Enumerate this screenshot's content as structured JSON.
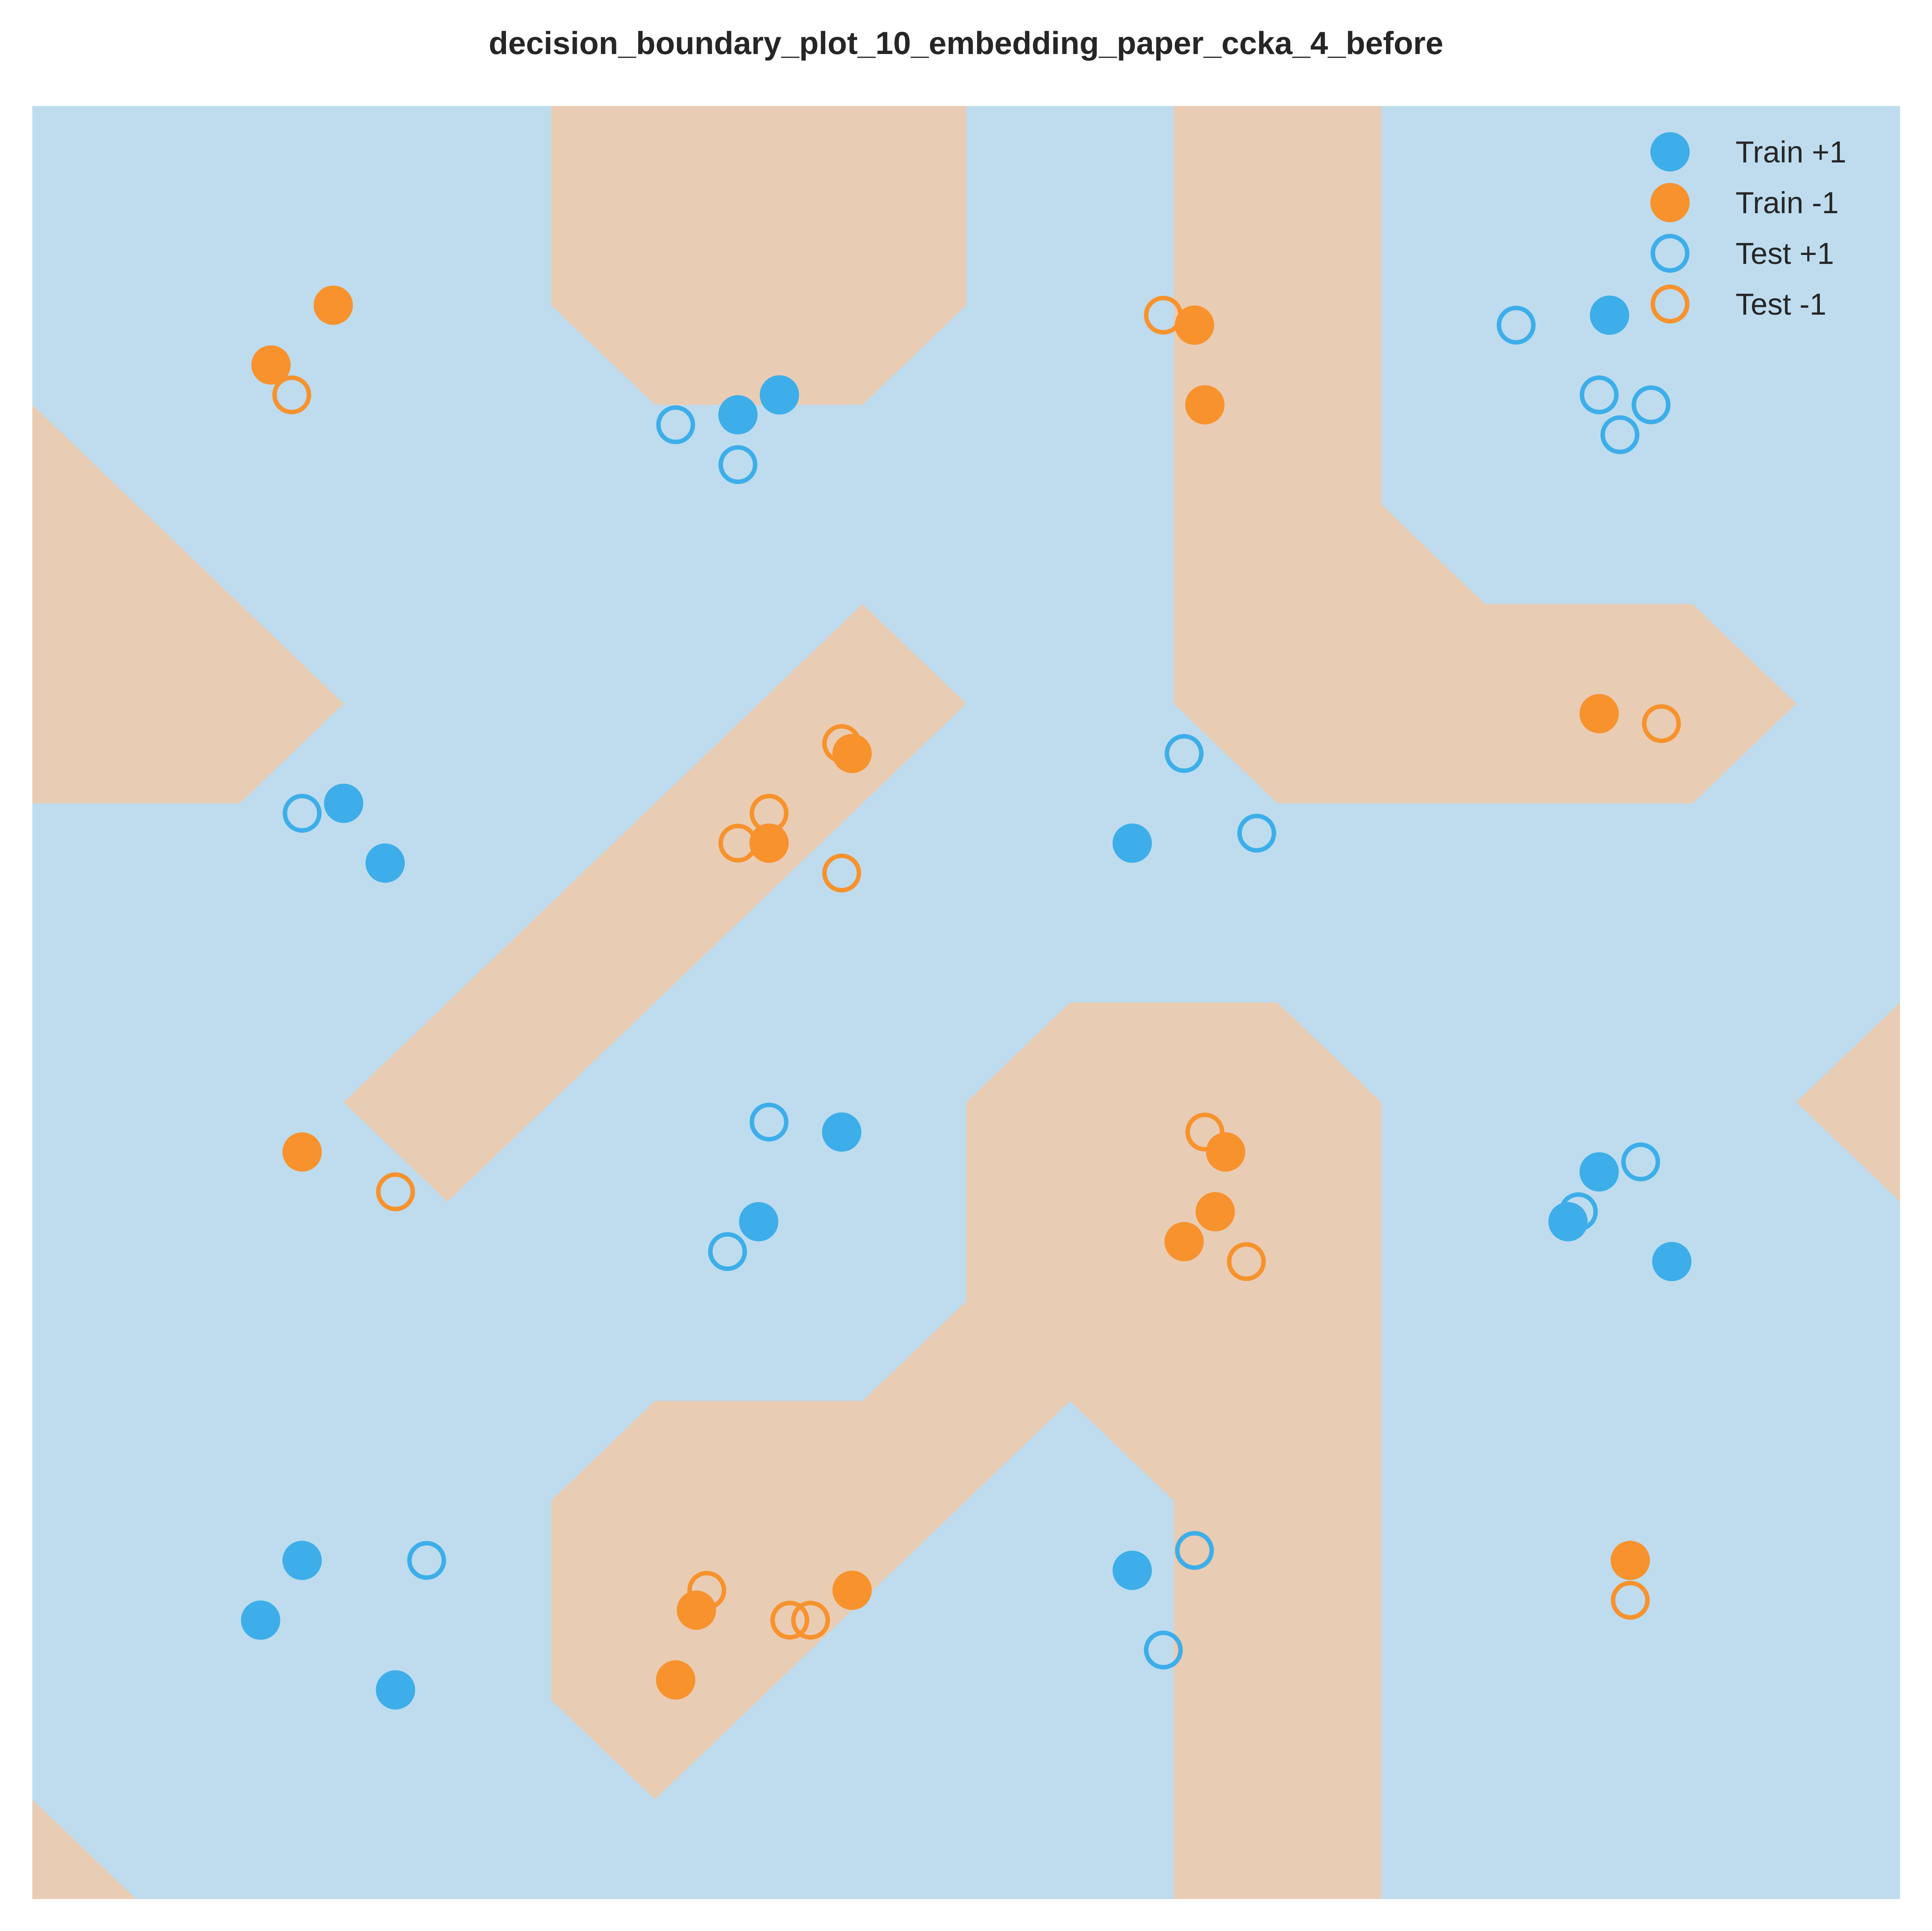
{
  "chart_data": {
    "type": "scatter",
    "title": "decision_boundary_plot_10_embedding_paper_ccka_4_before",
    "xlabel": "",
    "ylabel": "",
    "xlim": [
      0,
      18
    ],
    "ylim": [
      0,
      18
    ],
    "grid": false,
    "legend_position": "top-right",
    "background": {
      "positive_region_color": "#bedcee",
      "negative_region_color": "#e9ccb4",
      "negative_regions": [
        [
          [
            0,
            15
          ],
          [
            3,
            12
          ],
          [
            2,
            11
          ],
          [
            0,
            11
          ]
        ],
        [
          [
            5,
            18
          ],
          [
            9,
            18
          ],
          [
            9,
            16
          ],
          [
            8,
            15
          ],
          [
            6,
            15
          ],
          [
            5,
            16
          ]
        ],
        [
          [
            11,
            18
          ],
          [
            13,
            18
          ],
          [
            13,
            14
          ],
          [
            14,
            13
          ],
          [
            16,
            13
          ],
          [
            17,
            12
          ],
          [
            16,
            11
          ],
          [
            12,
            11
          ],
          [
            11,
            12
          ]
        ],
        [
          [
            3,
            8
          ],
          [
            8,
            13
          ],
          [
            9,
            12
          ],
          [
            4,
            7
          ]
        ],
        [
          [
            5,
            4
          ],
          [
            5,
            2
          ],
          [
            6,
            1
          ],
          [
            10,
            5
          ],
          [
            11,
            4
          ],
          [
            11,
            0
          ],
          [
            13,
            0
          ],
          [
            13,
            8
          ],
          [
            12,
            9
          ],
          [
            10,
            9
          ],
          [
            9,
            8
          ],
          [
            9,
            6
          ],
          [
            8,
            5
          ],
          [
            6,
            5
          ]
        ],
        [
          [
            18,
            9
          ],
          [
            17,
            8
          ],
          [
            18,
            7
          ]
        ],
        [
          [
            0,
            1
          ],
          [
            1,
            0
          ],
          [
            0,
            0
          ]
        ]
      ]
    },
    "colors": {
      "positive": "#3daee9",
      "negative": "#f7922d"
    },
    "legend": [
      {
        "label": "Train +1",
        "class": "+1",
        "style": "filled"
      },
      {
        "label": "Train -1",
        "class": "-1",
        "style": "filled"
      },
      {
        "label": "Test +1",
        "class": "+1",
        "style": "hollow"
      },
      {
        "label": "Test -1",
        "class": "-1",
        "style": "hollow"
      }
    ],
    "series": [
      {
        "name": "Train +1",
        "points": [
          [
            7.2,
            15.1
          ],
          [
            6.8,
            14.9
          ],
          [
            15.2,
            15.9
          ],
          [
            3.0,
            11.0
          ],
          [
            3.4,
            10.4
          ],
          [
            10.6,
            10.6
          ],
          [
            7.8,
            7.7
          ],
          [
            7.0,
            6.8
          ],
          [
            15.1,
            7.3
          ],
          [
            14.8,
            6.8
          ],
          [
            15.8,
            6.4
          ],
          [
            2.6,
            3.4
          ],
          [
            2.2,
            2.8
          ],
          [
            3.5,
            2.1
          ],
          [
            10.6,
            3.3
          ]
        ]
      },
      {
        "name": "Train -1",
        "points": [
          [
            2.9,
            16.0
          ],
          [
            2.3,
            15.4
          ],
          [
            11.2,
            15.8
          ],
          [
            11.3,
            15.0
          ],
          [
            15.1,
            11.9
          ],
          [
            7.9,
            11.5
          ],
          [
            7.1,
            10.6
          ],
          [
            2.6,
            7.5
          ],
          [
            11.5,
            7.5
          ],
          [
            11.4,
            6.9
          ],
          [
            11.1,
            6.6
          ],
          [
            6.4,
            2.9
          ],
          [
            7.9,
            3.1
          ],
          [
            6.2,
            2.2
          ],
          [
            15.4,
            3.4
          ]
        ]
      },
      {
        "name": "Test +1",
        "points": [
          [
            6.2,
            14.8
          ],
          [
            6.8,
            14.4
          ],
          [
            14.3,
            15.8
          ],
          [
            15.1,
            15.1
          ],
          [
            15.6,
            15.0
          ],
          [
            15.3,
            14.7
          ],
          [
            11.1,
            11.5
          ],
          [
            2.6,
            10.9
          ],
          [
            11.8,
            10.7
          ],
          [
            7.1,
            7.8
          ],
          [
            6.7,
            6.5
          ],
          [
            15.5,
            7.4
          ],
          [
            14.9,
            6.9
          ],
          [
            3.8,
            3.4
          ],
          [
            11.2,
            3.5
          ],
          [
            10.9,
            2.5
          ]
        ]
      },
      {
        "name": "Test -1",
        "points": [
          [
            10.9,
            15.9
          ],
          [
            2.5,
            15.1
          ],
          [
            15.7,
            11.8
          ],
          [
            7.8,
            11.6
          ],
          [
            7.1,
            10.9
          ],
          [
            6.8,
            10.6
          ],
          [
            7.8,
            10.3
          ],
          [
            3.5,
            7.1
          ],
          [
            11.3,
            7.7
          ],
          [
            11.7,
            6.4
          ],
          [
            6.5,
            3.1
          ],
          [
            7.3,
            2.8
          ],
          [
            7.5,
            2.8
          ],
          [
            15.4,
            3.0
          ]
        ]
      }
    ]
  }
}
